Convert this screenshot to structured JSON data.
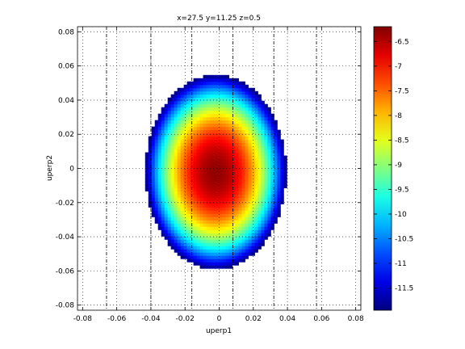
{
  "chart_data": {
    "type": "heatmap",
    "title": "x=27.5  y=11.25  z=0.5",
    "xlabel": "uperp1",
    "ylabel": "uperp2",
    "xlim": [
      -0.083,
      0.083
    ],
    "ylim": [
      -0.083,
      0.083
    ],
    "xticks": [
      -0.08,
      -0.06,
      -0.04,
      -0.02,
      0,
      0.02,
      0.04,
      0.06,
      0.08
    ],
    "xtick_labels": [
      "-0.08",
      "-0.06",
      "-0.04",
      "-0.02",
      "0",
      "0.02",
      "0.04",
      "0.06",
      "0.08"
    ],
    "yticks": [
      -0.08,
      -0.06,
      -0.04,
      -0.02,
      0,
      0.02,
      0.04,
      0.06,
      0.08
    ],
    "ytick_labels": [
      "-0.08",
      "-0.06",
      "-0.04",
      "-0.02",
      "0",
      "0.02",
      "0.04",
      "0.06",
      "0.08"
    ],
    "colormap": "jet",
    "clim": [
      -11.95,
      -6.2
    ],
    "colorbar_ticks": [
      -6.5,
      -7,
      -7.5,
      -8,
      -8.5,
      -9,
      -9.5,
      -10,
      -10.5,
      -11,
      -11.5
    ],
    "colorbar_tick_labels": [
      "-6.5",
      "-7",
      "-7.5",
      "-8",
      "-8.5",
      "-9",
      "-9.5",
      "-10",
      "-10.5",
      "-11",
      "-11.5"
    ],
    "center": [
      -0.002,
      -0.002
    ],
    "peak_value": -6.3,
    "gaussian_sigma": [
      0.04,
      0.055
    ],
    "reference_lines_x": [
      -0.066,
      -0.04,
      -0.016,
      0.008,
      0.032,
      0.057
    ],
    "grid": "dotted",
    "legend": "none"
  }
}
